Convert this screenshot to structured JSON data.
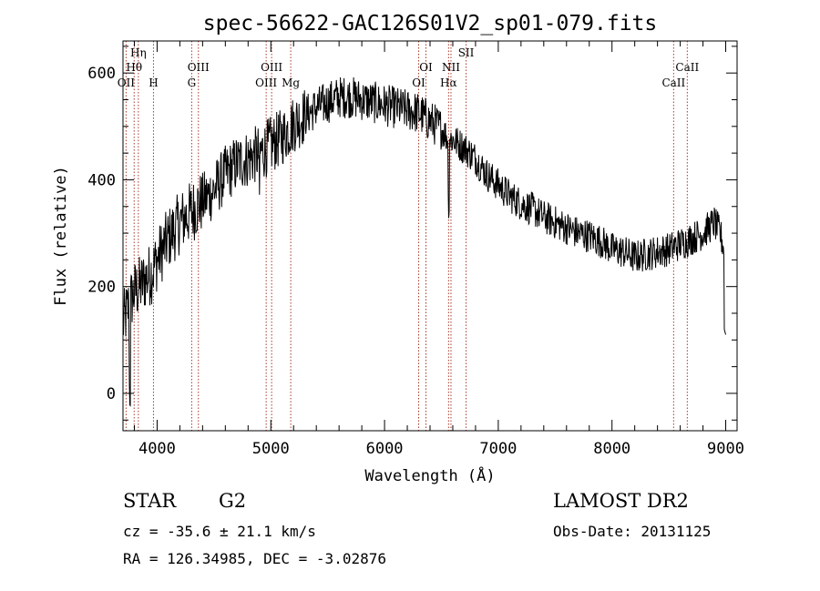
{
  "chart_data": {
    "type": "line",
    "title": "spec-56622-GAC126S01V2_sp01-079.fits",
    "xlabel": "Wavelength (Å)",
    "ylabel": "Flux (relative)",
    "xlim": [
      3700,
      9100
    ],
    "ylim": [
      -70,
      660
    ],
    "x_ticks": [
      4000,
      5000,
      6000,
      7000,
      8000,
      9000
    ],
    "y_ticks": [
      0,
      200,
      400,
      600
    ],
    "grid": false,
    "spectrum_envelope": {
      "x": [
        3700,
        3760,
        3800,
        3850,
        3900,
        3950,
        4000,
        4100,
        4200,
        4300,
        4400,
        4500,
        4600,
        4700,
        4800,
        4900,
        5000,
        5100,
        5200,
        5300,
        5400,
        5500,
        5600,
        5700,
        5800,
        5900,
        6000,
        6100,
        6200,
        6300,
        6400,
        6500,
        6550,
        6600,
        6700,
        6800,
        6900,
        7000,
        7100,
        7200,
        7300,
        7400,
        7500,
        7600,
        7700,
        7800,
        7900,
        8000,
        8100,
        8200,
        8300,
        8400,
        8500,
        8600,
        8700,
        8800,
        8900,
        8950,
        9000
      ],
      "y": [
        130,
        170,
        190,
        200,
        215,
        225,
        250,
        290,
        320,
        340,
        360,
        380,
        410,
        430,
        440,
        450,
        465,
        480,
        505,
        520,
        535,
        545,
        555,
        555,
        550,
        545,
        540,
        535,
        530,
        525,
        510,
        495,
        480,
        475,
        460,
        440,
        410,
        390,
        370,
        355,
        345,
        330,
        320,
        310,
        300,
        295,
        285,
        270,
        265,
        255,
        260,
        265,
        270,
        280,
        290,
        300,
        320,
        300,
        260
      ]
    },
    "spectral_lines": [
      {
        "name": "OII",
        "x": 3727
      },
      {
        "name": "Hθ",
        "x": 3798
      },
      {
        "name": "Hη",
        "x": 3835
      },
      {
        "name": "H",
        "x": 3968
      },
      {
        "name": "G",
        "x": 4304
      },
      {
        "name": "OIII",
        "x": 4363
      },
      {
        "name": "OIII",
        "x": 4959
      },
      {
        "name": "OIII",
        "x": 5007
      },
      {
        "name": "Mg",
        "x": 5175
      },
      {
        "name": "OI",
        "x": 6300
      },
      {
        "name": "OI",
        "x": 6364
      },
      {
        "name": "Hα",
        "x": 6563
      },
      {
        "name": "NII",
        "x": 6584
      },
      {
        "name": "SII",
        "x": 6717
      },
      {
        "name": "CaII",
        "x": 8542
      },
      {
        "name": "CaII",
        "x": 8662
      }
    ]
  },
  "info": {
    "object_class": "STAR",
    "subclass": "G2",
    "survey": "LAMOST DR2",
    "redshift": "cz = -35.6 ± 21.1 km/s",
    "obs_date": "Obs-Date: 20131125",
    "coords": "RA = 126.34985, DEC =  -3.02876"
  }
}
